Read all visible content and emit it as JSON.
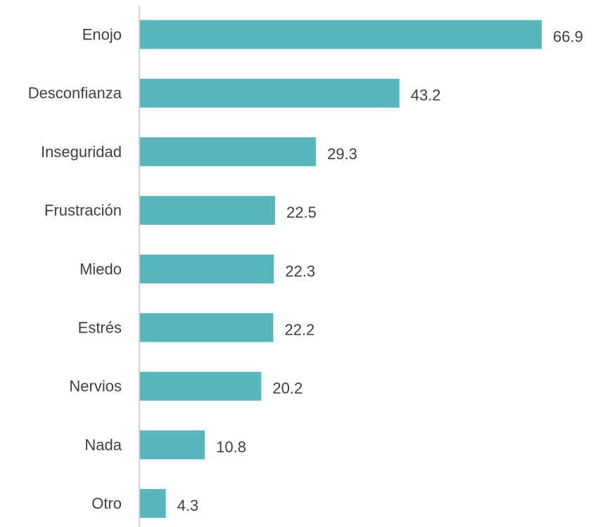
{
  "chart_data": {
    "type": "bar",
    "orientation": "horizontal",
    "categories": [
      "Enojo",
      "Desconfianza",
      "Inseguridad",
      "Frustración",
      "Miedo",
      "Estrés",
      "Nervios",
      "Nada",
      "Otro"
    ],
    "values": [
      66.9,
      43.2,
      29.3,
      22.5,
      22.3,
      22.2,
      20.2,
      10.8,
      4.3
    ],
    "value_labels": [
      "66.9",
      "43.2",
      "29.3",
      "22.5",
      "22.3",
      "22.2",
      "20.2",
      "10.8",
      "4.3"
    ],
    "bar_color": "#5ab6be",
    "axis_color": "#d0d0d0",
    "xlim": [
      0,
      66.9
    ],
    "grid": false,
    "legend": "none"
  }
}
